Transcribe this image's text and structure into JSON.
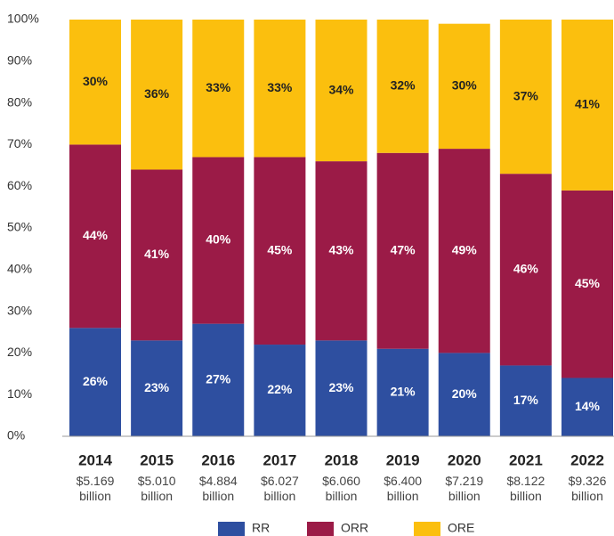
{
  "chart_data": {
    "type": "stacked_bar_100",
    "categories": [
      "2014",
      "2015",
      "2016",
      "2017",
      "2018",
      "2019",
      "2020",
      "2021",
      "2022"
    ],
    "totals": [
      "$5.169 billion",
      "$5.010 billion",
      "$4.884 billion",
      "$6.027 billion",
      "$6.060 billion",
      "$6.400 billion",
      "$7.219 billion",
      "$8.122 billion",
      "$9.326 billion"
    ],
    "series": [
      {
        "name": "RR",
        "color": "#2e4fa0",
        "values": [
          26,
          23,
          27,
          22,
          23,
          21,
          20,
          17,
          14
        ],
        "value_labels": [
          "26%",
          "23%",
          "27%",
          "22%",
          "23%",
          "21%",
          "20%",
          "17%",
          "14%"
        ]
      },
      {
        "name": "ORR",
        "color": "#9b1b47",
        "values": [
          44,
          41,
          40,
          45,
          43,
          47,
          49,
          46,
          45
        ],
        "value_labels": [
          "44%",
          "41%",
          "40%",
          "45%",
          "43%",
          "47%",
          "49%",
          "46%",
          "45%"
        ]
      },
      {
        "name": "ORE",
        "color": "#fbbf0e",
        "values": [
          30,
          36,
          33,
          33,
          34,
          32,
          30,
          37,
          41
        ],
        "value_labels": [
          "30%",
          "36%",
          "33%",
          "33%",
          "34%",
          "32%",
          "30%",
          "37%",
          "41%"
        ]
      }
    ],
    "ylim": [
      0,
      100
    ],
    "yticks": [
      {
        "value": 0,
        "label": "0%"
      },
      {
        "value": 10,
        "label": "10%"
      },
      {
        "value": 20,
        "label": "20%"
      },
      {
        "value": 30,
        "label": "30%"
      },
      {
        "value": 40,
        "label": "40%"
      },
      {
        "value": 50,
        "label": "50%"
      },
      {
        "value": 60,
        "label": "60%"
      },
      {
        "value": 70,
        "label": "70%"
      },
      {
        "value": 80,
        "label": "80%"
      },
      {
        "value": 90,
        "label": "90%"
      },
      {
        "value": 100,
        "label": "100%"
      }
    ],
    "legend": "bottom"
  }
}
